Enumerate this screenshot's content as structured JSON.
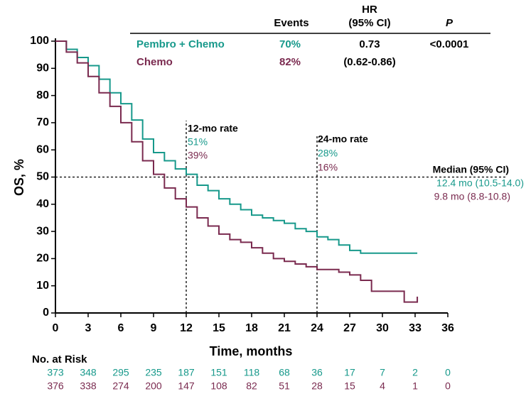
{
  "chart_data": {
    "type": "step",
    "xlabel": "Time, months",
    "ylabel": "OS, %",
    "x": [
      0,
      1,
      2,
      3,
      4,
      5,
      6,
      7,
      8,
      9,
      10,
      11,
      12,
      13,
      14,
      15,
      16,
      17,
      18,
      19,
      20,
      21,
      22,
      23,
      24,
      25,
      26,
      27,
      28,
      29,
      30,
      31,
      32,
      33.2
    ],
    "series": [
      {
        "name": "Pembro + Chemo",
        "color": "#17998b",
        "values": [
          100,
          97,
          94,
          91,
          86,
          81,
          77,
          71,
          64,
          59,
          56,
          53,
          51,
          47,
          45,
          42,
          40,
          38,
          36,
          35,
          34,
          33,
          31,
          30,
          28,
          27,
          25,
          23,
          22,
          22,
          22,
          22,
          22,
          22
        ]
      },
      {
        "name": "Chemo",
        "color": "#7a2a4f",
        "values": [
          100,
          96,
          92,
          87,
          81,
          76,
          70,
          63,
          56,
          51,
          46,
          42,
          39,
          35,
          32,
          29,
          27,
          26,
          24,
          22,
          20,
          19,
          18,
          17,
          16,
          16,
          15,
          14,
          12,
          8,
          8,
          8,
          4,
          6
        ]
      }
    ],
    "xlim": [
      0,
      36
    ],
    "xticks": [
      0,
      3,
      6,
      9,
      12,
      15,
      18,
      21,
      24,
      27,
      30,
      33,
      36
    ],
    "ylim": [
      0,
      100
    ],
    "yticks": [
      0,
      10,
      20,
      30,
      40,
      50,
      60,
      70,
      80,
      90,
      100
    ],
    "vlines": [
      12,
      24
    ],
    "hline": 50,
    "table": {
      "header": [
        "Events",
        "HR",
        "(95% CI)",
        "P"
      ],
      "rows": [
        [
          "Pembro + Chemo",
          "70%",
          "0.73",
          "<0.0001"
        ],
        [
          "Chemo",
          "82%",
          "(0.62-0.86)"
        ]
      ]
    },
    "annotations": {
      "rate12": [
        "12-mo rate",
        "51%",
        "39%"
      ],
      "rate24": [
        "24-mo rate",
        "28%",
        "16%"
      ],
      "median": [
        "Median (95% CI)",
        "12.4 mo (10.5-14.0)",
        "9.8 mo (8.8-10.8)"
      ]
    },
    "risk": {
      "title": "No. at Risk",
      "rows": [
        [
          373,
          348,
          295,
          235,
          187,
          151,
          118,
          68,
          36,
          17,
          7,
          2,
          0
        ],
        [
          376,
          338,
          274,
          200,
          147,
          108,
          82,
          51,
          28,
          15,
          4,
          1,
          0
        ]
      ]
    }
  }
}
